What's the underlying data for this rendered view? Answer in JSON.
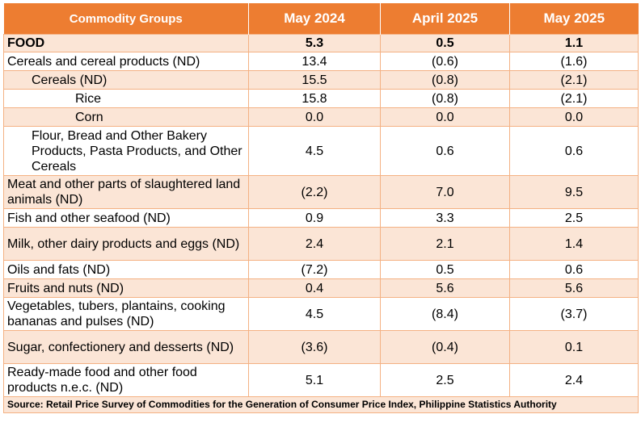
{
  "headers": [
    "Commodity Groups",
    "May 2024",
    "April 2025",
    "May 2025"
  ],
  "rows": [
    {
      "label": "FOOD",
      "v1": "5.3",
      "v2": "0.5",
      "v3": "1.1"
    },
    {
      "label": "Cereals and cereal products (ND)",
      "v1": "13.4",
      "v2": "(0.6)",
      "v3": "(1.6)"
    },
    {
      "label": "Cereals (ND)",
      "v1": "15.5",
      "v2": "(0.8)",
      "v3": "(2.1)"
    },
    {
      "label": "Rice",
      "v1": "15.8",
      "v2": "(0.8)",
      "v3": "(2.1)"
    },
    {
      "label": "Corn",
      "v1": "0.0",
      "v2": "0.0",
      "v3": "0.0"
    },
    {
      "label": "Flour, Bread and Other Bakery Products, Pasta Products, and Other Cereals",
      "v1": "4.5",
      "v2": "0.6",
      "v3": "0.6"
    },
    {
      "label": "Meat and other parts of slaughtered land animals (ND)",
      "v1": "(2.2)",
      "v2": "7.0",
      "v3": "9.5"
    },
    {
      "label": "Fish and other seafood (ND)",
      "v1": "0.9",
      "v2": "3.3",
      "v3": "2.5"
    },
    {
      "label": "Milk, other dairy products and eggs (ND)",
      "v1": "2.4",
      "v2": "2.1",
      "v3": "1.4"
    },
    {
      "label": "Oils and fats (ND)",
      "v1": "(7.2)",
      "v2": "0.5",
      "v3": "0.6"
    },
    {
      "label": "Fruits and nuts (ND)",
      "v1": "0.4",
      "v2": "5.6",
      "v3": "5.6"
    },
    {
      "label": "Vegetables, tubers, plantains, cooking bananas and pulses (ND)",
      "v1": "4.5",
      "v2": "(8.4)",
      "v3": "(3.7)"
    },
    {
      "label": "Sugar, confectionery and desserts (ND)",
      "v1": "(3.6)",
      "v2": "(0.4)",
      "v3": "0.1"
    },
    {
      "label": "Ready-made food and other food products n.e.c. (ND)",
      "v1": "5.1",
      "v2": "2.5",
      "v3": "2.4"
    }
  ],
  "source": "Source: Retail Price Survey of Commodities for the Generation of Consumer Price Index, Philippine Statistics Authority"
}
